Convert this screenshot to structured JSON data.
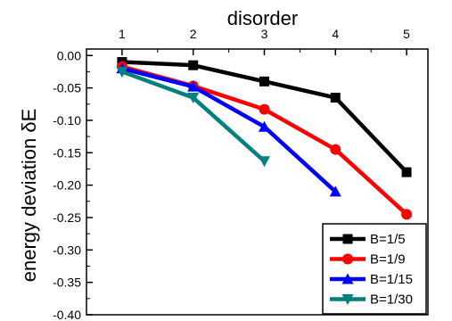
{
  "chart_data": {
    "type": "line",
    "xlabel": "disorder",
    "ylabel": "energy deviation δE",
    "x_ticks": [
      "1",
      "2",
      "3",
      "4",
      "5"
    ],
    "y_ticks": [
      "0.00",
      "-0.05",
      "-0.10",
      "-0.15",
      "-0.20",
      "-0.25",
      "-0.30",
      "-0.35",
      "-0.40"
    ],
    "xlim": [
      0.5,
      5.3
    ],
    "ylim": [
      -0.4,
      0.01
    ],
    "x_axis_position": "top",
    "grid": false,
    "legend_position": "bottom-right",
    "series": [
      {
        "name": "B=1/5",
        "color": "#000000",
        "marker": "square",
        "x": [
          1,
          2,
          3,
          4,
          5
        ],
        "y": [
          -0.01,
          -0.015,
          -0.04,
          -0.065,
          -0.18
        ]
      },
      {
        "name": "B=1/9",
        "color": "#ff0000",
        "marker": "circle",
        "x": [
          1,
          2,
          3,
          4,
          5
        ],
        "y": [
          -0.017,
          -0.047,
          -0.083,
          -0.145,
          -0.245
        ]
      },
      {
        "name": "B=1/15",
        "color": "#0000ff",
        "marker": "triangle-up",
        "x": [
          1,
          2,
          3,
          4
        ],
        "y": [
          -0.02,
          -0.048,
          -0.11,
          -0.21
        ]
      },
      {
        "name": "B=1/30",
        "color": "#008080",
        "marker": "triangle-down",
        "x": [
          1,
          2,
          3
        ],
        "y": [
          -0.025,
          -0.065,
          -0.163
        ]
      }
    ]
  }
}
